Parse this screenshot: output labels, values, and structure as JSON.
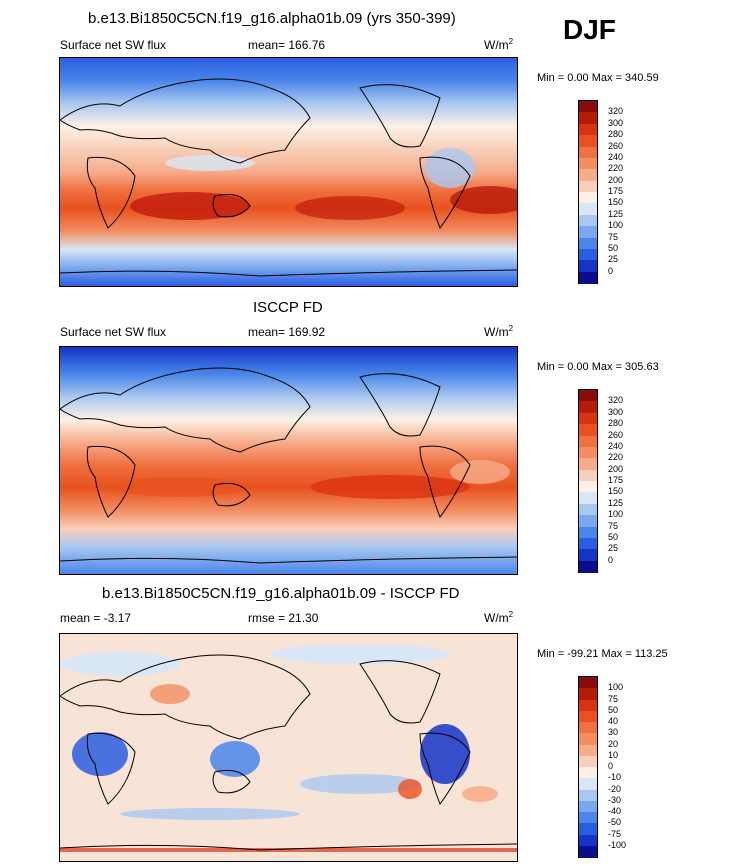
{
  "season": "DJF",
  "panels": [
    {
      "title": "b.e13.Bi1850C5CN.f19_g16.alpha01b.09 (yrs 350-399)",
      "left_label": "Surface net SW flux",
      "center_label": "mean= 166.76",
      "units": "W/m",
      "units_exp": "2",
      "minmax": "Min =   0.00 Max = 340.59",
      "colorbar": {
        "labels": [
          "320",
          "300",
          "280",
          "260",
          "240",
          "220",
          "200",
          "175",
          "150",
          "125",
          "100",
          "75",
          "50",
          "25",
          "0"
        ],
        "colors": [
          "#8b0a0a",
          "#b81a0a",
          "#d93312",
          "#e8521f",
          "#ef7040",
          "#f38d62",
          "#f6ac8b",
          "#f8cfb8",
          "#fdf1e6",
          "#d8e6f6",
          "#a9c8f0",
          "#7aa8ee",
          "#4a86ea",
          "#2a5ee0",
          "#1434c8",
          "#0a0e8c"
        ]
      }
    },
    {
      "title": "ISCCP FD",
      "left_label": "Surface net SW flux",
      "center_label": "mean= 169.92",
      "units": "W/m",
      "units_exp": "2",
      "minmax": "Min =   0.00 Max = 305.63",
      "colorbar": {
        "labels": [
          "320",
          "300",
          "280",
          "260",
          "240",
          "220",
          "200",
          "175",
          "150",
          "125",
          "100",
          "75",
          "50",
          "25",
          "0"
        ],
        "colors": [
          "#8b0a0a",
          "#b81a0a",
          "#d93312",
          "#e8521f",
          "#ef7040",
          "#f38d62",
          "#f6ac8b",
          "#f8cfb8",
          "#fdf1e6",
          "#d8e6f6",
          "#a9c8f0",
          "#7aa8ee",
          "#4a86ea",
          "#2a5ee0",
          "#1434c8",
          "#0a0e8c"
        ]
      }
    },
    {
      "title": "b.e13.Bi1850C5CN.f19_g16.alpha01b.09 - ISCCP FD",
      "left_label": "mean =  -3.17",
      "center_label": "rmse =  21.30",
      "units": "W/m",
      "units_exp": "2",
      "minmax": "Min = -99.21 Max = 113.25",
      "colorbar": {
        "labels": [
          "100",
          "75",
          "50",
          "40",
          "30",
          "20",
          "10",
          "0",
          "-10",
          "-20",
          "-30",
          "-40",
          "-50",
          "-75",
          "-100"
        ],
        "colors": [
          "#8b0a0a",
          "#b81a0a",
          "#d93312",
          "#e8521f",
          "#ef7040",
          "#f38d62",
          "#f6ac8b",
          "#f8cfb8",
          "#fdf1e6",
          "#d8e6f6",
          "#a9c8f0",
          "#7aa8ee",
          "#4a86ea",
          "#2a5ee0",
          "#1434c8",
          "#0a0e8c"
        ]
      }
    }
  ]
}
